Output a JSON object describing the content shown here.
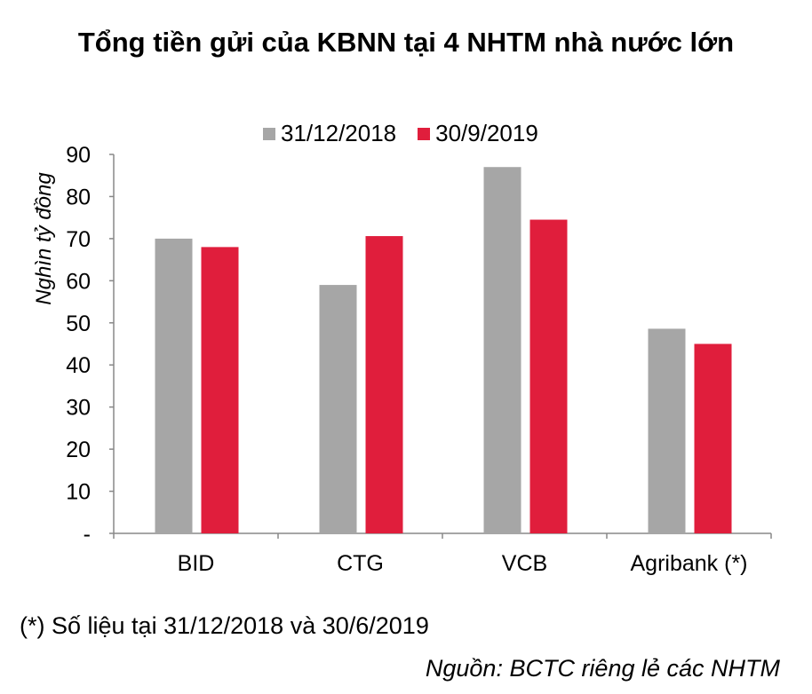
{
  "chart_data": {
    "type": "bar",
    "title": "Tổng tiền gửi của KBNN tại 4 NHTM nhà nước lớn",
    "ylabel": "Nghìn tỷ đồng",
    "xlabel": "",
    "categories": [
      "BID",
      "CTG",
      "VCB",
      "Agribank (*)"
    ],
    "series": [
      {
        "name": "31/12/2018",
        "color": "#a6a6a6",
        "values": [
          70,
          59,
          87,
          48.6
        ]
      },
      {
        "name": "30/9/2019",
        "color": "#e01e3c",
        "values": [
          68,
          70.6,
          74.5,
          45
        ]
      }
    ],
    "ylim": [
      0,
      90
    ],
    "yticks": [
      "-",
      "10",
      "20",
      "30",
      "40",
      "50",
      "60",
      "70",
      "80",
      "90"
    ],
    "legend": "top",
    "grid": false
  },
  "note": "(*) Số liệu tại 31/12/2018 và 30/6/2019",
  "source": "Nguồn: BCTC riêng lẻ các NHTM"
}
